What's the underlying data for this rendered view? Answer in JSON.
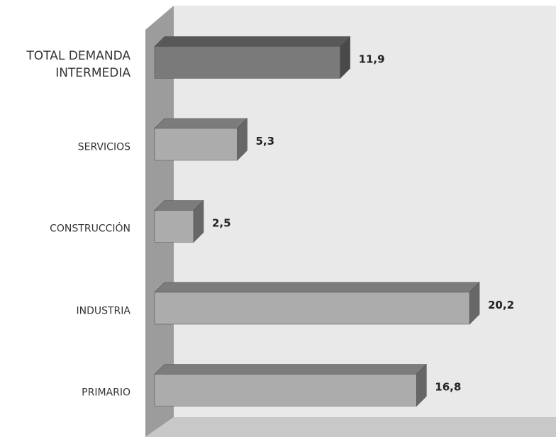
{
  "chart_data": {
    "type": "bar3d_horizontal",
    "categories": [
      "TOTAL DEMANDA INTERMEDIA",
      "SERVICIOS",
      "CONSTRUCCIÓN",
      "INDUSTRIA",
      "PRIMARIO"
    ],
    "values": [
      11.9,
      5.3,
      2.5,
      20.2,
      16.8
    ],
    "value_labels": [
      "11,9",
      "5,3",
      "2,5",
      "20,2",
      "16,8"
    ],
    "colors": [
      "#7a7a7a",
      "#acacac",
      "#acacac",
      "#acacac",
      "#acacac"
    ]
  }
}
